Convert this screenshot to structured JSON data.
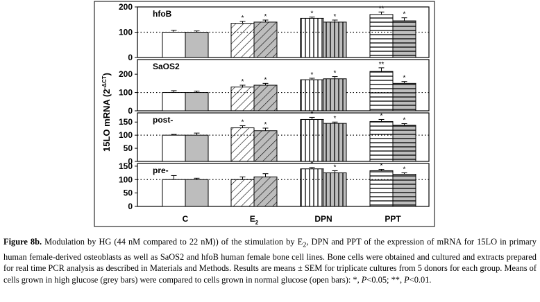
{
  "chart_data": {
    "type": "bar",
    "ylabel": "15LO mRNA (2^-ΔCT)",
    "categories": [
      "C",
      "E2",
      "DPN",
      "PPT"
    ],
    "series_names": [
      "normal glucose (open bars)",
      "high glucose (grey bars)"
    ],
    "panels": [
      {
        "label": "hfoB",
        "ylim": [
          0,
          200
        ],
        "yticks": [
          0,
          100,
          200
        ],
        "baseline": 100,
        "normal_glucose": [
          100,
          135,
          155,
          170
        ],
        "normal_glucose_sem": [
          8,
          8,
          5,
          10
        ],
        "high_glucose": [
          100,
          140,
          140,
          145
        ],
        "high_glucose_sem": [
          5,
          8,
          8,
          12
        ],
        "annotations_normal": [
          "",
          "*",
          "*",
          "**"
        ],
        "annotations_high": [
          "",
          "*",
          "*",
          "*"
        ]
      },
      {
        "label": "SaOS2",
        "ylim": [
          0,
          280
        ],
        "yticks": [
          0,
          100,
          200
        ],
        "baseline": 100,
        "normal_glucose": [
          100,
          130,
          170,
          215
        ],
        "normal_glucose_sem": [
          10,
          10,
          8,
          20
        ],
        "high_glucose": [
          100,
          140,
          175,
          150
        ],
        "high_glucose_sem": [
          8,
          10,
          12,
          10
        ],
        "annotations_normal": [
          "",
          "*",
          "*",
          "**"
        ],
        "annotations_high": [
          "",
          "*",
          "*",
          "*"
        ]
      },
      {
        "label": "post-",
        "ylim": [
          0,
          185
        ],
        "yticks": [
          0,
          50,
          100,
          150
        ],
        "baseline": 100,
        "normal_glucose": [
          100,
          128,
          160,
          152
        ],
        "normal_glucose_sem": [
          3,
          8,
          8,
          8
        ],
        "high_glucose": [
          100,
          117,
          145,
          138
        ],
        "high_glucose_sem": [
          8,
          10,
          5,
          6
        ],
        "annotations_normal": [
          "",
          "*",
          "*",
          "*"
        ],
        "annotations_high": [
          "",
          "*",
          "*",
          "*"
        ]
      },
      {
        "label": "pre-",
        "ylim": [
          0,
          160
        ],
        "yticks": [
          0,
          50,
          100,
          150
        ],
        "baseline": 100,
        "normal_glucose": [
          100,
          100,
          140,
          133
        ],
        "normal_glucose_sem": [
          15,
          10,
          5,
          5
        ],
        "high_glucose": [
          100,
          110,
          125,
          120
        ],
        "high_glucose_sem": [
          5,
          12,
          8,
          5
        ],
        "annotations_normal": [
          "",
          "",
          "*",
          "*"
        ],
        "annotations_high": [
          "",
          "",
          "*",
          "*"
        ]
      }
    ]
  },
  "caption": {
    "title": "Figure 8b.",
    "text_1": " Modulation by HG (44 nM compared to 22 nM)) of the stimulation by E",
    "sub_1": "2",
    "text_2": ", DPN and PPT of the expression of mRNA for 15LO in primary human female-derived osteoblasts as well as SaOS2 and hfoB human female bone cell lines. Bone cells were obtained and cultured and extracts prepared for real time PCR analysis as described in Materials and Methods. Results are means ± SEM for triplicate cultures from 5 donors for each group. Means of cells grown in high glucose (grey bars) were compared to cells grown in normal glucose (open bars): *, ",
    "p1": "P",
    "text_3": "<0.05; **, ",
    "p2": "P",
    "text_4": "<0.01."
  }
}
